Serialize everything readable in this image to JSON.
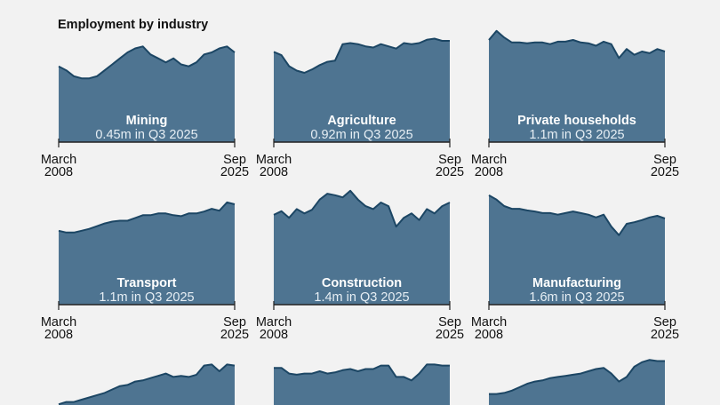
{
  "chart_data": {
    "type": "area",
    "title": "Employment by industry",
    "x_start_label": [
      "March",
      "2008"
    ],
    "x_end_label": [
      "Sep",
      "2025"
    ],
    "x_range": [
      "March 2008",
      "Sep 2025"
    ],
    "grid": false,
    "legend": "none",
    "colors": {
      "fill": "#4e7491",
      "line": "#1c4664",
      "background": "#f2f2f2",
      "axis": "#222222"
    },
    "panels": [
      {
        "name": "Mining",
        "subtitle": "0.45m in Q3 2025",
        "ylim": [
          0,
          0.557
        ],
        "values": [
          0.38,
          0.36,
          0.33,
          0.32,
          0.32,
          0.33,
          0.36,
          0.39,
          0.42,
          0.45,
          0.47,
          0.48,
          0.44,
          0.42,
          0.4,
          0.42,
          0.39,
          0.38,
          0.4,
          0.44,
          0.45,
          0.47,
          0.48,
          0.45
        ]
      },
      {
        "name": "Agriculture",
        "subtitle": "0.92m in Q3 2025",
        "ylim": [
          0,
          1.009
        ],
        "values": [
          0.82,
          0.79,
          0.69,
          0.65,
          0.63,
          0.66,
          0.7,
          0.73,
          0.74,
          0.89,
          0.9,
          0.89,
          0.87,
          0.86,
          0.89,
          0.87,
          0.85,
          0.9,
          0.89,
          0.9,
          0.93,
          0.94,
          0.92,
          0.92
        ]
      },
      {
        "name": "Private households",
        "subtitle": "1.1m in Q3 2025",
        "ylim": [
          0,
          1.348
        ],
        "values": [
          1.24,
          1.35,
          1.27,
          1.21,
          1.21,
          1.2,
          1.21,
          1.21,
          1.19,
          1.22,
          1.22,
          1.24,
          1.21,
          1.2,
          1.17,
          1.22,
          1.19,
          1.02,
          1.13,
          1.06,
          1.1,
          1.08,
          1.13,
          1.1
        ]
      },
      {
        "name": "Transport",
        "subtitle": "1.1m in Q3 2025",
        "ylim": [
          0,
          1.246
        ],
        "values": [
          0.81,
          0.79,
          0.79,
          0.81,
          0.83,
          0.86,
          0.89,
          0.91,
          0.92,
          0.92,
          0.95,
          0.98,
          0.98,
          1.0,
          1.0,
          0.98,
          0.97,
          1.0,
          1.0,
          1.02,
          1.05,
          1.03,
          1.12,
          1.1
        ]
      },
      {
        "name": "Construction",
        "subtitle": "1.4m in Q3 2025",
        "ylim": [
          0,
          1.558
        ],
        "values": [
          1.23,
          1.28,
          1.19,
          1.31,
          1.25,
          1.3,
          1.44,
          1.52,
          1.5,
          1.47,
          1.56,
          1.44,
          1.35,
          1.31,
          1.4,
          1.35,
          1.07,
          1.19,
          1.25,
          1.16,
          1.31,
          1.25,
          1.35,
          1.4
        ]
      },
      {
        "name": "Manufacturing",
        "subtitle": "1.6m in Q3 2025",
        "ylim": [
          0,
          2.111
        ],
        "values": [
          2.03,
          1.95,
          1.83,
          1.78,
          1.78,
          1.75,
          1.73,
          1.7,
          1.7,
          1.67,
          1.7,
          1.73,
          1.7,
          1.67,
          1.62,
          1.67,
          1.45,
          1.29,
          1.5,
          1.53,
          1.57,
          1.62,
          1.65,
          1.6
        ]
      },
      {
        "name": "",
        "subtitle": "",
        "ylim": [
          0,
          1
        ],
        "values": [
          0.53,
          0.55,
          0.55,
          0.57,
          0.59,
          0.61,
          0.63,
          0.66,
          0.69,
          0.7,
          0.73,
          0.74,
          0.76,
          0.78,
          0.8,
          0.77,
          0.78,
          0.77,
          0.79,
          0.87,
          0.88,
          0.82,
          0.88,
          0.87
        ]
      },
      {
        "name": "",
        "subtitle": "",
        "ylim": [
          0,
          1
        ],
        "values": [
          0.85,
          0.85,
          0.8,
          0.79,
          0.8,
          0.8,
          0.82,
          0.8,
          0.81,
          0.83,
          0.84,
          0.82,
          0.84,
          0.84,
          0.87,
          0.87,
          0.77,
          0.77,
          0.74,
          0.8,
          0.88,
          0.88,
          0.87,
          0.87
        ]
      },
      {
        "name": "",
        "subtitle": "",
        "ylim": [
          0,
          1
        ],
        "values": [
          0.62,
          0.62,
          0.63,
          0.65,
          0.68,
          0.71,
          0.73,
          0.74,
          0.76,
          0.77,
          0.78,
          0.79,
          0.8,
          0.82,
          0.84,
          0.85,
          0.8,
          0.73,
          0.77,
          0.86,
          0.9,
          0.92,
          0.91,
          0.91
        ]
      }
    ]
  }
}
